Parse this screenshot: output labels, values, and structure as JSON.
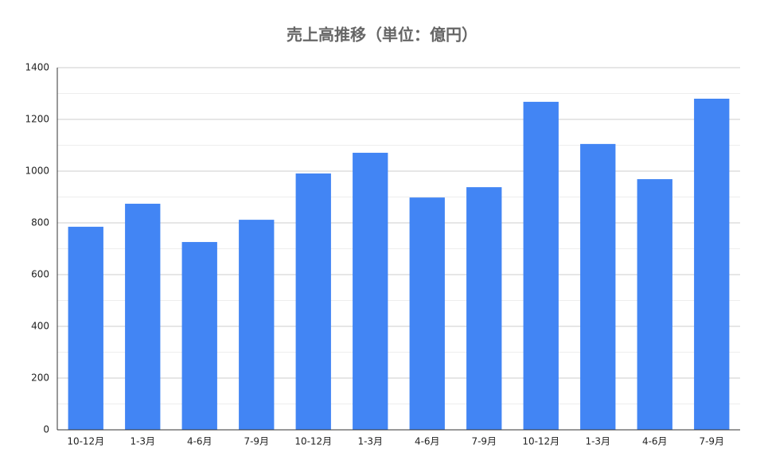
{
  "chart_data": {
    "type": "bar",
    "title": "売上高推移（単位：億円）",
    "categories": [
      "10-12月",
      "1-3月",
      "4-6月",
      "7-9月",
      "10-12月",
      "1-3月",
      "4-6月",
      "7-9月",
      "10-12月",
      "1-3月",
      "4-6月",
      "7-9月"
    ],
    "values": [
      785,
      874,
      726,
      812,
      991,
      1071,
      898,
      938,
      1268,
      1105,
      969,
      1280
    ],
    "color": "#4285f4",
    "ylim": [
      0,
      1400
    ],
    "yticks": [
      0,
      200,
      400,
      600,
      800,
      1000,
      1200,
      1400
    ],
    "grid": true,
    "minor_grid": true
  }
}
